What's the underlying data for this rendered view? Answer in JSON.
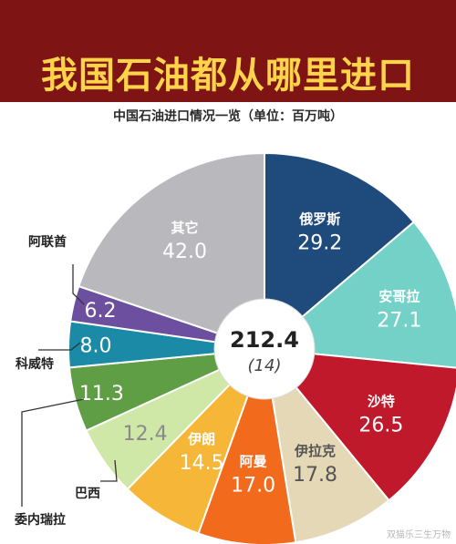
{
  "header": {
    "title": "我国石油都从哪里进口"
  },
  "chart_data": {
    "type": "pie",
    "title": "中国石油进口情况一览（单位：百万吨）",
    "center_label": "212.4",
    "center_sublabel": "(14)",
    "slices": [
      {
        "label": "俄罗斯",
        "value": 29.2,
        "color": "#1f4a7c",
        "text_color": "#ffffff"
      },
      {
        "label": "安哥拉",
        "value": 27.1,
        "color": "#74d1c8",
        "text_color": "#ffffff"
      },
      {
        "label": "沙特",
        "value": 26.5,
        "color": "#c0192b",
        "text_color": "#ffffff"
      },
      {
        "label": "伊拉克",
        "value": 17.8,
        "color": "#e4d8b6",
        "text_color": "#555555"
      },
      {
        "label": "阿曼",
        "value": 17.0,
        "color": "#f26a1b",
        "text_color": "#ffffff"
      },
      {
        "label": "伊朗",
        "value": 14.5,
        "color": "#f6b637",
        "text_color": "#ffffff"
      },
      {
        "label": "巴西",
        "value": 12.4,
        "color": "#cfe8a8",
        "text_color": "#8a8a8a"
      },
      {
        "label": "委内瑞拉",
        "value": 11.3,
        "color": "#5f9e44",
        "text_color": "#ffffff"
      },
      {
        "label": "科威特",
        "value": 8.0,
        "color": "#1b8aa6",
        "text_color": "#ffffff"
      },
      {
        "label": "阿联酋",
        "value": 6.2,
        "color": "#6c4f9e",
        "text_color": "#ffffff"
      },
      {
        "label": "其它",
        "value": 42.0,
        "color": "#b9b9bd",
        "text_color": "#ffffff"
      }
    ]
  },
  "watermark": "双猫乐三生万物"
}
